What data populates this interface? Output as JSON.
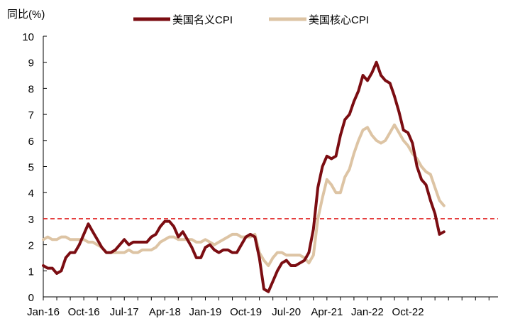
{
  "chart_data": {
    "type": "line",
    "ylabel": "同比(%)",
    "ylim": [
      0,
      10
    ],
    "y_ticks": [
      "0",
      "1",
      "2",
      "3",
      "4",
      "5",
      "6",
      "7",
      "8",
      "9",
      "10"
    ],
    "x_tick_labels": [
      "Jan-16",
      "Oct-16",
      "Jul-17",
      "Apr-18",
      "Jan-19",
      "Oct-19",
      "Jul-20",
      "Apr-21",
      "Jan-22",
      "Oct-22"
    ],
    "x_tick_months": [
      0,
      9,
      18,
      27,
      36,
      45,
      54,
      63,
      72,
      81
    ],
    "x_range_months": [
      0,
      101
    ],
    "grid": false,
    "legend_position": "top",
    "reference_line": {
      "y": 3.0,
      "style": "dashed",
      "color": "#e02020"
    },
    "series": [
      {
        "name": "美国名义CPI",
        "color": "#7b0d12",
        "start_month": 0,
        "forecast_from_month": 93,
        "values": [
          1.2,
          1.1,
          1.1,
          0.9,
          1.0,
          1.5,
          1.7,
          1.7,
          2.0,
          2.4,
          2.8,
          2.5,
          2.2,
          1.9,
          1.7,
          1.7,
          1.8,
          2.0,
          2.2,
          2.0,
          2.1,
          2.1,
          2.1,
          2.1,
          2.3,
          2.4,
          2.7,
          2.9,
          2.9,
          2.7,
          2.3,
          2.5,
          2.2,
          1.9,
          1.5,
          1.5,
          1.9,
          2.0,
          1.8,
          1.7,
          1.8,
          1.8,
          1.7,
          1.7,
          2.0,
          2.3,
          2.4,
          2.3,
          1.5,
          0.3,
          0.2,
          0.6,
          1.0,
          1.3,
          1.4,
          1.2,
          1.2,
          1.3,
          1.4,
          1.7,
          2.6,
          4.2,
          5.0,
          5.4,
          5.3,
          5.4,
          6.2,
          6.8,
          7.0,
          7.5,
          7.9,
          8.5,
          8.3,
          8.6,
          9.0,
          8.5,
          8.3,
          8.2,
          7.7,
          7.1,
          6.4,
          6.3,
          5.9,
          5.0,
          4.5,
          4.3,
          3.7,
          3.2,
          2.4,
          2.5
        ],
        "values_note": "monthly, one value per month from Jan-16"
      },
      {
        "name": "美国核心CPI",
        "color": "#ddc4a4",
        "start_month": 0,
        "forecast_from_month": 93,
        "values": [
          2.2,
          2.3,
          2.2,
          2.2,
          2.3,
          2.3,
          2.2,
          2.2,
          2.2,
          2.2,
          2.1,
          2.1,
          2.0,
          1.9,
          1.7,
          1.7,
          1.7,
          1.7,
          1.7,
          1.8,
          1.7,
          1.7,
          1.8,
          1.8,
          1.8,
          1.9,
          2.1,
          2.2,
          2.3,
          2.3,
          2.2,
          2.2,
          2.2,
          2.2,
          2.1,
          2.1,
          2.2,
          2.1,
          2.0,
          2.1,
          2.2,
          2.3,
          2.4,
          2.4,
          2.3,
          2.3,
          2.3,
          2.4,
          1.7,
          1.4,
          1.2,
          1.5,
          1.7,
          1.7,
          1.6,
          1.6,
          1.6,
          1.6,
          1.5,
          1.3,
          1.6,
          3.0,
          3.8,
          4.5,
          4.3,
          4.0,
          4.0,
          4.6,
          4.9,
          5.5,
          6.0,
          6.4,
          6.5,
          6.2,
          6.0,
          5.9,
          6.0,
          6.3,
          6.6,
          6.3,
          6.0,
          5.8,
          5.5,
          5.3,
          5.0,
          4.8,
          4.7,
          4.2,
          3.7,
          3.5
        ],
        "values_note": "monthly, one value per month from Jan-16"
      }
    ]
  }
}
